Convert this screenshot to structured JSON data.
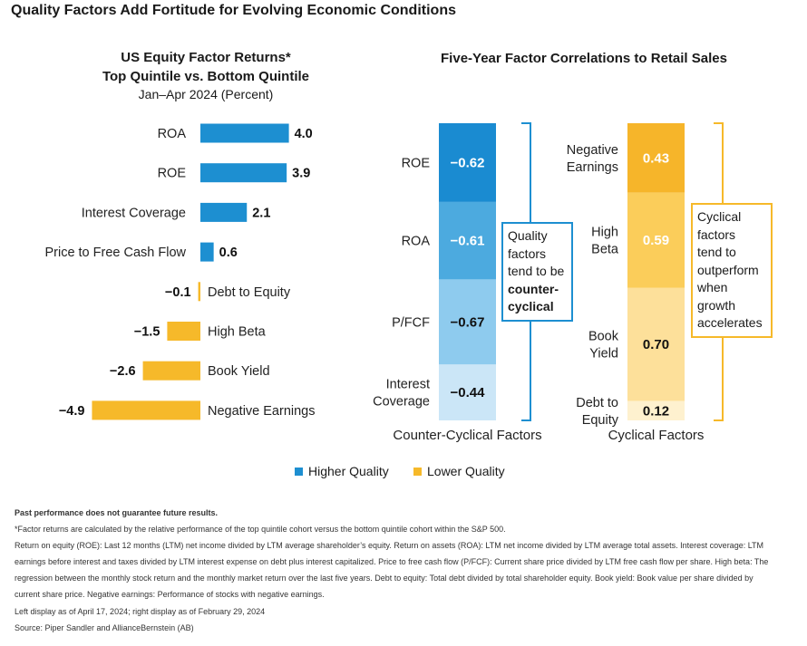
{
  "title": "Quality Factors Add Fortitude for Evolving Economic Conditions",
  "colors": {
    "higher_quality": "#1d8fd1",
    "lower_quality": "#f6b92a",
    "blue_shades": [
      "#1a8bd1",
      "#4caadf",
      "#8ecbee",
      "#cbe6f7"
    ],
    "yellow_shades": [
      "#f6b52a",
      "#fbcd5a",
      "#fde09a",
      "#fef1cf"
    ]
  },
  "left_chart": {
    "title_line1": "US Equity Factor Returns*",
    "title_line2": "Top Quintile vs. Bottom Quintile",
    "subtitle": "Jan–Apr 2024 (Percent)"
  },
  "right_chart": {
    "title": "Five-Year Factor Correlations to Retail Sales",
    "callout_left": {
      "line1": "Quality",
      "line2": "factors",
      "line3": "tend to be",
      "bold1": "counter-",
      "bold2": "cyclical"
    },
    "callout_right": {
      "line1": "Cyclical",
      "line2": "factors",
      "line3": "tend to",
      "line4": "outperform",
      "line5": "when",
      "line6": "growth",
      "line7": "accelerates"
    }
  },
  "legend": {
    "higher": "Higher Quality",
    "lower": "Lower Quality"
  },
  "chart_data": [
    {
      "type": "bar",
      "orientation": "horizontal",
      "title": "US Equity Factor Returns*",
      "subtitle": "Top Quintile vs. Bottom Quintile",
      "units": "Jan–Apr 2024 (Percent)",
      "categories": [
        "ROA",
        "ROE",
        "Interest Coverage",
        "Price to Free Cash Flow",
        "Debt to Equity",
        "High Beta",
        "Book Yield",
        "Negative Earnings"
      ],
      "values": [
        4.0,
        3.9,
        2.1,
        0.6,
        -0.1,
        -1.5,
        -2.6,
        -4.9
      ],
      "value_labels": [
        "4.0",
        "3.9",
        "2.1",
        "0.6",
        "−0.1",
        "−1.5",
        "−2.6",
        "−4.9"
      ],
      "group": [
        "higher",
        "higher",
        "higher",
        "higher",
        "lower",
        "lower",
        "lower",
        "lower"
      ]
    },
    {
      "type": "bar",
      "orientation": "stacked-column",
      "title": "Five-Year Factor Correlations to Retail Sales",
      "xlabel": "Counter-Cyclical Factors",
      "segments": [
        {
          "label": "ROE",
          "value": -0.62,
          "text": "−0.62"
        },
        {
          "label": "ROA",
          "value": -0.61,
          "text": "−0.61"
        },
        {
          "label": "P/FCF",
          "value": -0.67,
          "text": "−0.67"
        },
        {
          "label": "Interest Coverage",
          "label_lines": [
            "Interest",
            "Coverage"
          ],
          "value": -0.44,
          "text": "−0.44"
        }
      ]
    },
    {
      "type": "bar",
      "orientation": "stacked-column",
      "xlabel": "Cyclical Factors",
      "segments": [
        {
          "label": "Negative Earnings",
          "label_lines": [
            "Negative",
            "Earnings"
          ],
          "value": 0.43,
          "text": "0.43"
        },
        {
          "label": "High Beta",
          "label_lines": [
            "High",
            "Beta"
          ],
          "value": 0.59,
          "text": "0.59"
        },
        {
          "label": "Book Yield",
          "label_lines": [
            "Book",
            "Yield"
          ],
          "value": 0.7,
          "text": "0.70"
        },
        {
          "label": "Debt to Equity",
          "label_lines": [
            "Debt to",
            "Equity"
          ],
          "value": 0.12,
          "text": "0.12"
        }
      ]
    }
  ],
  "footnotes": {
    "disclaimer": "Past performance does not guarantee future results.",
    "note1": "*Factor returns are calculated by the relative performance of the top quintile cohort versus the bottom quintile cohort within the S&P 500.",
    "note2": "Return on equity (ROE): Last 12 months (LTM) net income divided by LTM average shareholder’s equity. Return on assets (ROA): LTM net income divided by LTM average total assets. Interest coverage: LTM",
    "note3": "earnings before interest and taxes divided by LTM interest expense on debt plus interest capitalized. Price to free cash flow (P/FCF): Current share price divided by LTM free cash flow per share. High beta: The",
    "note4": "regression between the monthly stock return and the monthly market return over the last five years. Debt to equity: Total debt divided by total shareholder equity. Book yield: Book value per share divided by",
    "note5": "current share price. Negative earnings: Performance of stocks with negative earnings.",
    "note6": "Left display as of April 17, 2024; right display as of February 29, 2024",
    "source": "Source: Piper Sandler and AllianceBernstein (AB)"
  }
}
